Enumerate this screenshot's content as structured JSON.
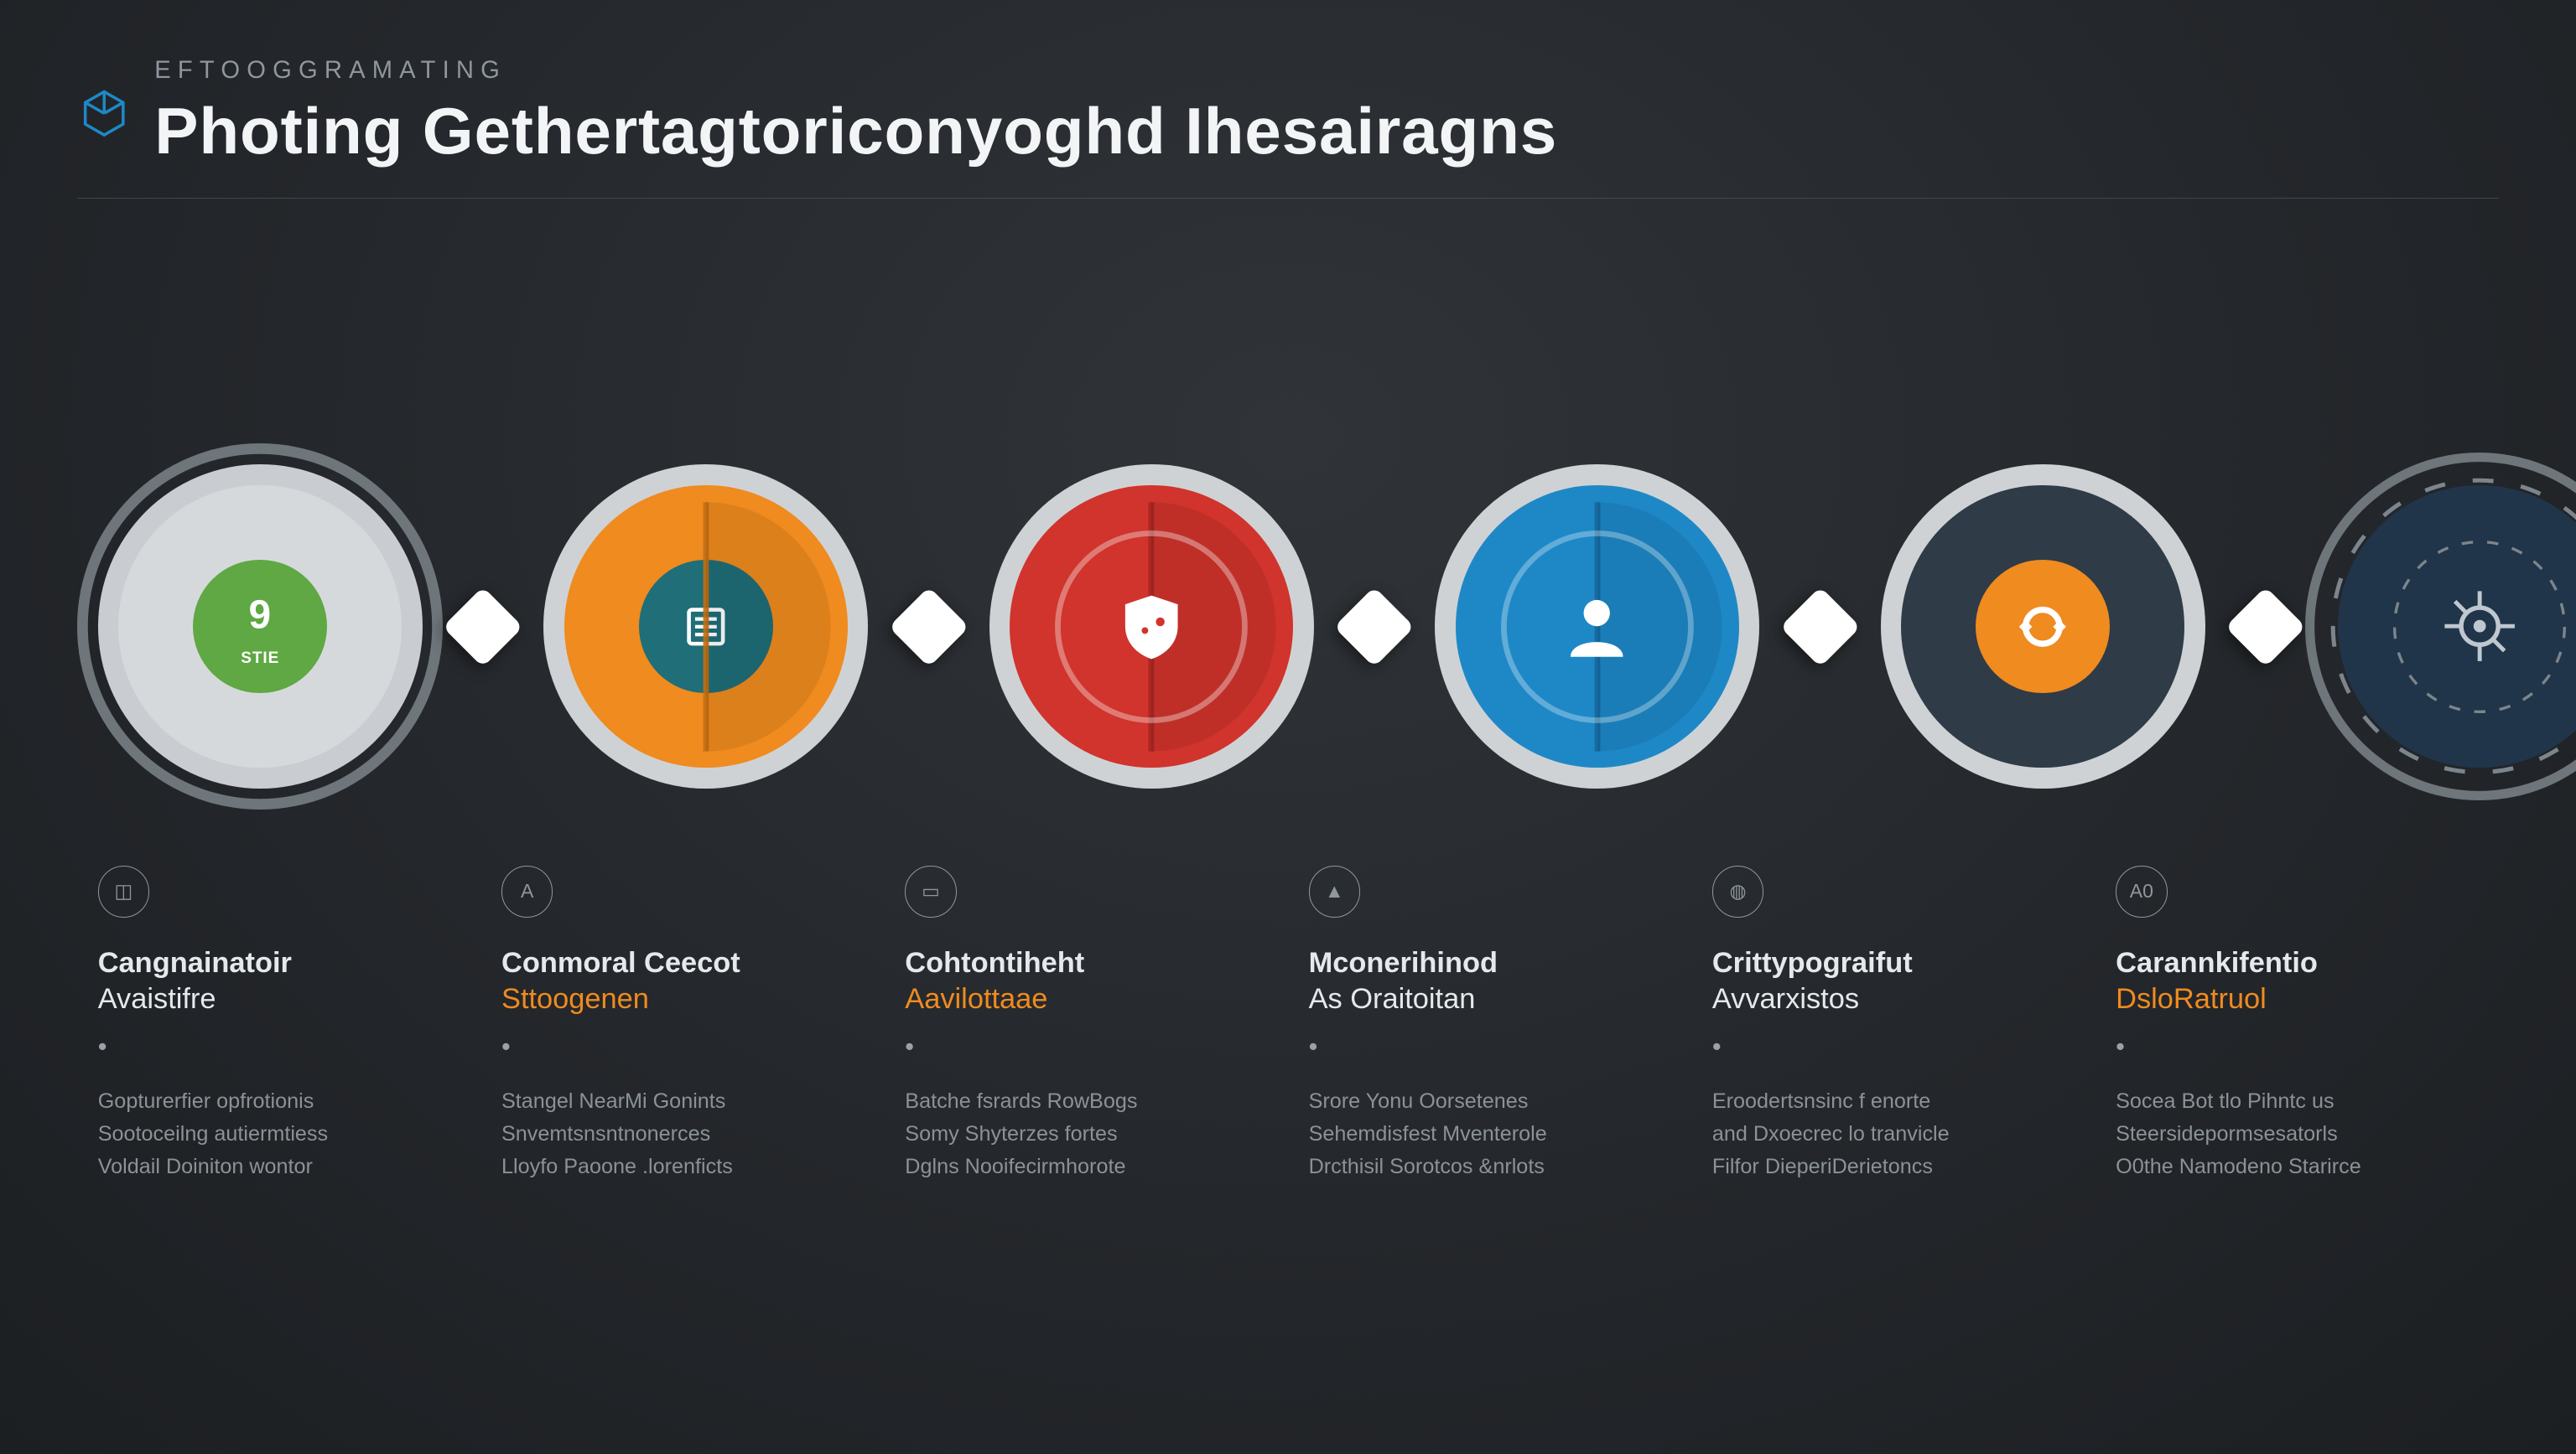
{
  "canvas": {
    "background": "radial-gradient(ellipse at 50% 30%, #303438 0%, #24272b 55%, #1c1f22 100%)",
    "text_color": "#e6e9ec",
    "muted_text": "#9aa1a8",
    "rule_color": "#5a6066"
  },
  "header": {
    "logo_color": "#1e88c7",
    "eyebrow": "EFTOOGGRAMATING",
    "eyebrow_color": "#8f979e",
    "title": "Photing Gethertagtoriconyoghd Ihesairagns",
    "title_color": "#f2f4f6"
  },
  "connector": {
    "fill": "#ffffff"
  },
  "nodes": [
    {
      "id": "n1",
      "outer_ring_color": "#6e757b",
      "outer_ring_width": 8,
      "pad_fill": "#c9cdd1",
      "disc_fill": "#d6d9dc",
      "core_fill": "#5fa843",
      "core_icon": "nine",
      "core_label": "STIE",
      "core_text_color": "#ffffff",
      "has_split": false
    },
    {
      "id": "n2",
      "outer_ring_color": "rgba(0,0,0,0)",
      "outer_ring_width": 0,
      "pad_fill": "#cfd2d5",
      "disc_fill": "#ef8b1f",
      "split_shadow": "#c46f13",
      "core_fill": "#1f6e78",
      "core_icon": "list",
      "core_text_color": "#ffffff",
      "has_split": true
    },
    {
      "id": "n3",
      "outer_ring_color": "rgba(0,0,0,0)",
      "outer_ring_width": 0,
      "pad_fill": "#cfd2d5",
      "disc_fill": "#d0342c",
      "split_shadow": "#a82620",
      "core_fill": "#d0342c",
      "core_icon": "shield",
      "core_text_color": "#ffffff",
      "has_split": true,
      "inner_ring": {
        "color": "#ffffff",
        "opacity": 0.35
      }
    },
    {
      "id": "n4",
      "outer_ring_color": "rgba(0,0,0,0)",
      "outer_ring_width": 0,
      "pad_fill": "#cfd2d5",
      "disc_fill": "#1e88c7",
      "split_shadow": "#156a9e",
      "core_fill": "#1e88c7",
      "core_icon": "person",
      "core_text_color": "#ffffff",
      "has_split": true,
      "inner_ring": {
        "color": "#ffffff",
        "opacity": 0.3
      }
    },
    {
      "id": "n5",
      "outer_ring_color": "rgba(0,0,0,0)",
      "outer_ring_width": 0,
      "pad_fill": "#cfd2d5",
      "disc_fill": "#2f3b47",
      "core_fill": "#ef8b1f",
      "core_icon": "target-ring",
      "core_text_color": "#ffffff",
      "has_split": false
    },
    {
      "id": "n6",
      "is_edge": true,
      "outer_ring_color": "#6e757b",
      "outer_ring_width": 7,
      "pad_fill": "rgba(0,0,0,0)",
      "disc_fill": "#20354a",
      "core_fill": "#20354a",
      "core_icon": "crosshair-target",
      "core_text_color": "#bfc7cf",
      "has_split": false,
      "dashed_ring": {
        "color": "#7d858c",
        "dash": "6 8"
      }
    }
  ],
  "labels": [
    {
      "mini": "◫",
      "mini_color": "#8f979e",
      "title": "Cangnainatoir",
      "title_color": "#e6e9ec",
      "sub": "Avaistifre",
      "sub_color": "#e6e9ec",
      "body": "Gopturerfier opfrotionis\nSootoceilng autiermtiess\nVoldail Doiniton wontor",
      "body_color": "#8b9298"
    },
    {
      "mini": "A",
      "mini_color": "#8f979e",
      "title": "Conmoral Ceecot",
      "title_color": "#e6e9ec",
      "sub": "Sttoogenen",
      "sub_color": "#ef8b1f",
      "body": "Stangel NearMi Gonints\nSnvemtsnsntnonerces\nLloyfo Paoone .lorenficts",
      "body_color": "#8b9298"
    },
    {
      "mini": "▭",
      "mini_color": "#8f979e",
      "title": "Cohtontiheht",
      "title_color": "#e6e9ec",
      "sub": "Aavilottaae",
      "sub_color": "#ef8b1f",
      "body": "Batche fsrards RowBogs\nSomy Shyterzes fortes\nDglns Nooifecirmhorote",
      "body_color": "#8b9298"
    },
    {
      "mini": "▲",
      "mini_color": "#8f979e",
      "title": "Mconerihinod",
      "title_color": "#e6e9ec",
      "sub": "As Oraitoitan",
      "sub_color": "#e6e9ec",
      "body": "Srore Yonu Oorsetenes\nSehemdisfest Mventerole\nDrcthisil Sorotcos &nrlots",
      "body_color": "#8b9298"
    },
    {
      "mini": "◍",
      "mini_color": "#8f979e",
      "title": "Crittypograifut",
      "title_color": "#e6e9ec",
      "sub": "Avvarxistos",
      "sub_color": "#e6e9ec",
      "body": "Eroodertsnsinc f enorte\nand Dxoecrec lo tranvicle\nFilfor DieperiDerietoncs",
      "body_color": "#8b9298"
    },
    {
      "mini": "A0",
      "mini_color": "#8f979e",
      "title": "Carannkifentio",
      "title_color": "#e6e9ec",
      "sub": "DsloRatruol",
      "sub_color": "#ef8b1f",
      "body": "Socea Bot tlo Pihntc us\nSteersidepormsesatorls\nO0the Namodeno Starirce",
      "body_color": "#8b9298"
    }
  ]
}
